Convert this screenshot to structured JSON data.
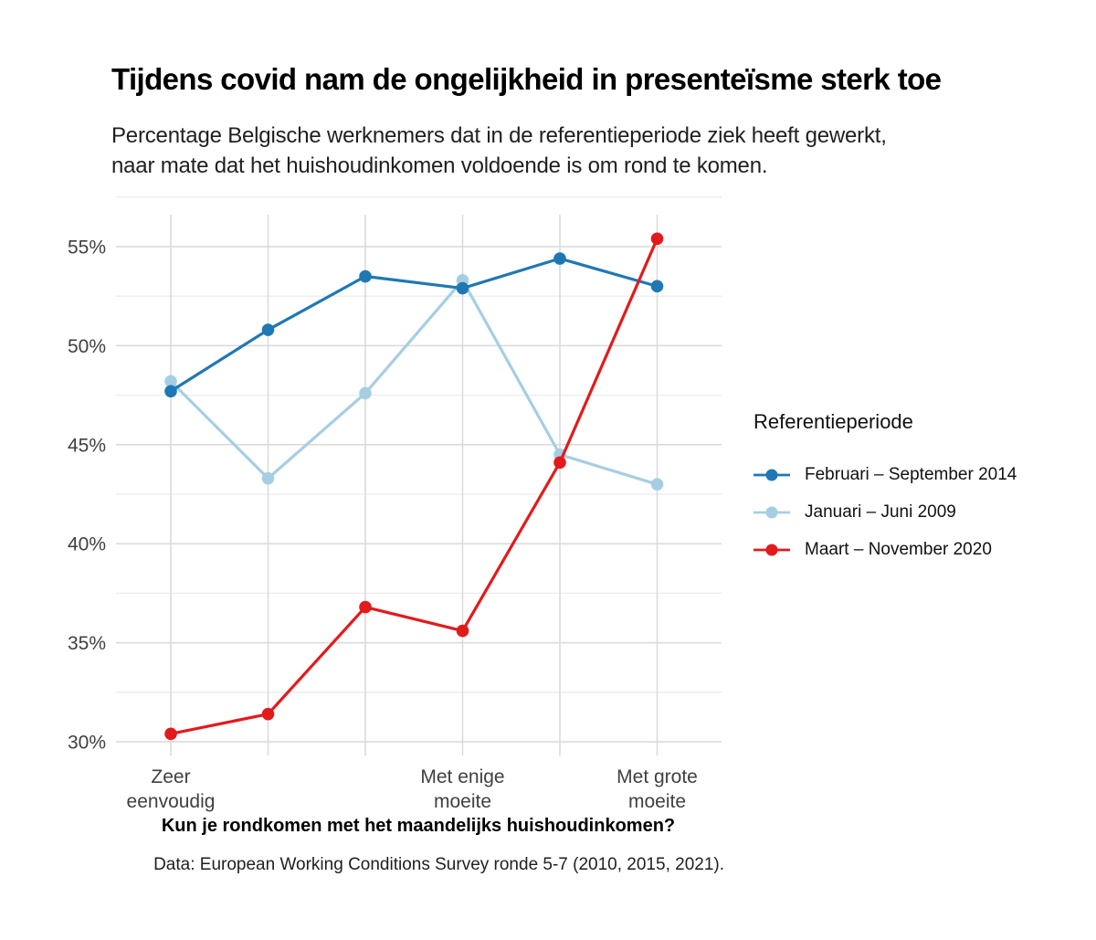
{
  "chart_data": {
    "type": "line",
    "title": "Tijdens covid nam de ongelijkheid in presenteïsme sterk toe",
    "subtitle_lines": [
      "Percentage Belgische werknemers dat in de referentieperiode ziek heeft gewerkt,",
      "naar mate dat het huishoudinkomen voldoende is om rond te komen."
    ],
    "xlabel": "Kun je rondkomen met het maandelijks huishoudinkomen?",
    "caption": "Data: European Working Conditions Survey ronde 5-7 (2010, 2015, 2021).",
    "legend_title": "Referentieperiode",
    "legend_position": "right",
    "grid": true,
    "x_categories_count": 6,
    "x_tick_labels": [
      {
        "index": 0,
        "lines": [
          "Zeer",
          "eenvoudig"
        ]
      },
      {
        "index": 3,
        "lines": [
          "Met enige",
          "moeite"
        ]
      },
      {
        "index": 5,
        "lines": [
          "Met grote",
          "moeite"
        ]
      }
    ],
    "y_ticks": [
      30,
      35,
      40,
      45,
      50,
      55
    ],
    "y_minor_ticks": [
      32.5,
      37.5,
      42.5,
      47.5,
      52.5,
      57.5
    ],
    "y_tick_suffix": "%",
    "ylim": [
      29.3,
      57.7
    ],
    "series": [
      {
        "name": "Februari – September 2014",
        "color": "#1F78B4",
        "values": [
          47.7,
          50.8,
          53.5,
          52.9,
          54.4,
          53.0
        ]
      },
      {
        "name": "Januari – Juni 2009",
        "color": "#A6CEE3",
        "values": [
          48.2,
          43.3,
          47.6,
          53.3,
          44.5,
          43.0
        ]
      },
      {
        "name": "Maart – November 2020",
        "color": "#E31A1C",
        "values": [
          30.4,
          31.4,
          36.8,
          35.6,
          44.1,
          55.4
        ]
      }
    ]
  },
  "colors": {
    "grid_major": "#D9D9D9",
    "grid_minor": "#ECECEC",
    "axis_text": "#404040",
    "background": "#FFFFFF"
  }
}
